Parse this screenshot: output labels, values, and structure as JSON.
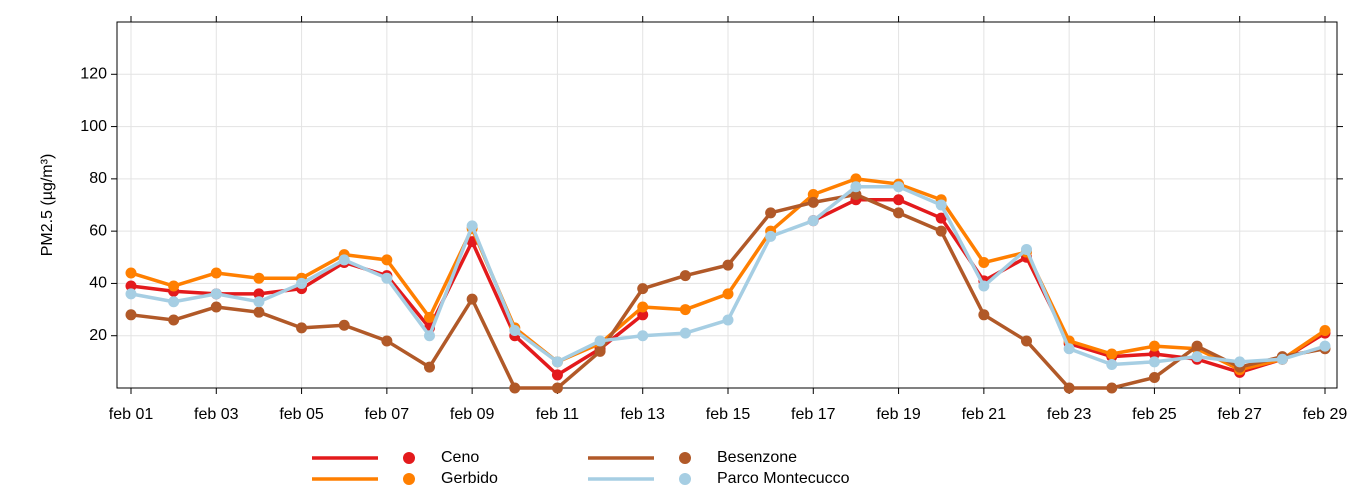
{
  "chart_data": {
    "type": "line",
    "y_label": "PM2.5 (µg/m³)",
    "categories": [
      "feb 01",
      null,
      "feb 03",
      null,
      "feb 05",
      null,
      "feb 07",
      null,
      "feb 09",
      null,
      "feb 11",
      null,
      "feb 13",
      null,
      "feb 15",
      null,
      "feb 17",
      null,
      "feb 19",
      null,
      "feb 21",
      null,
      "feb 23",
      null,
      "feb 25",
      null,
      "feb 27",
      null,
      "feb 29"
    ],
    "series": [
      {
        "name": "Ceno",
        "color": "#e31a1c",
        "values": [
          39,
          37,
          36,
          36,
          38,
          48,
          43,
          23,
          56,
          20,
          5,
          15,
          28,
          null,
          null,
          null,
          64,
          72,
          72,
          65,
          41,
          50,
          17,
          12,
          13,
          11,
          6,
          11,
          21
        ]
      },
      {
        "name": "Gerbido",
        "color": "#ff7f00",
        "values": [
          44,
          39,
          44,
          42,
          42,
          51,
          49,
          27,
          61,
          23,
          10,
          17,
          31,
          30,
          36,
          60,
          74,
          80,
          78,
          72,
          48,
          52,
          18,
          13,
          16,
          15,
          7,
          11,
          22
        ]
      },
      {
        "name": "Besenzone",
        "color": "#b15928",
        "values": [
          28,
          26,
          31,
          29,
          23,
          24,
          18,
          8,
          34,
          0,
          0,
          14,
          38,
          43,
          47,
          67,
          71,
          74,
          67,
          60,
          28,
          18,
          0,
          0,
          4,
          16,
          8,
          12,
          15
        ]
      },
      {
        "name": "Parco Montecucco",
        "color": "#a6cee3",
        "values": [
          36,
          33,
          36,
          33,
          40,
          49,
          42,
          20,
          62,
          22,
          10,
          18,
          20,
          21,
          26,
          58,
          64,
          77,
          77,
          70,
          39,
          53,
          15,
          9,
          10,
          12,
          10,
          11,
          16
        ]
      }
    ],
    "ylim": [
      0,
      140
    ],
    "yticks": [
      20,
      40,
      60,
      80,
      100,
      120
    ],
    "grid": true,
    "legend": "bottom"
  }
}
